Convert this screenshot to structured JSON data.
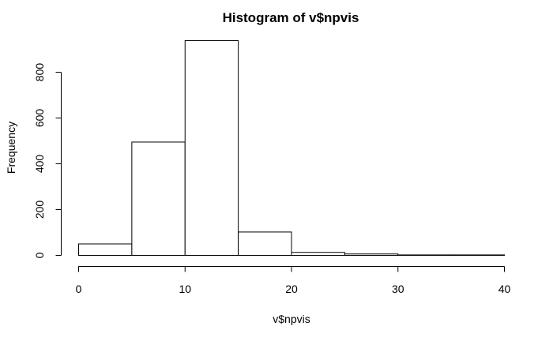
{
  "chart_data": {
    "type": "bar",
    "title": "Histogram of v$npvis",
    "xlabel": "v$npvis",
    "ylabel": "Frequency",
    "bins": [
      [
        0,
        5
      ],
      [
        5,
        10
      ],
      [
        10,
        15
      ],
      [
        15,
        20
      ],
      [
        20,
        25
      ],
      [
        25,
        30
      ],
      [
        30,
        35
      ],
      [
        35,
        40
      ]
    ],
    "values": [
      50,
      495,
      938,
      102,
      13,
      6,
      2,
      2
    ],
    "xlim": [
      0,
      40
    ],
    "ylim": [
      0,
      938
    ],
    "xticks": [
      0,
      10,
      20,
      30,
      40
    ],
    "yticks": [
      0,
      200,
      400,
      600,
      800
    ],
    "grid": false,
    "colors": {
      "fill": "#ffffff",
      "stroke": "#000000"
    }
  }
}
